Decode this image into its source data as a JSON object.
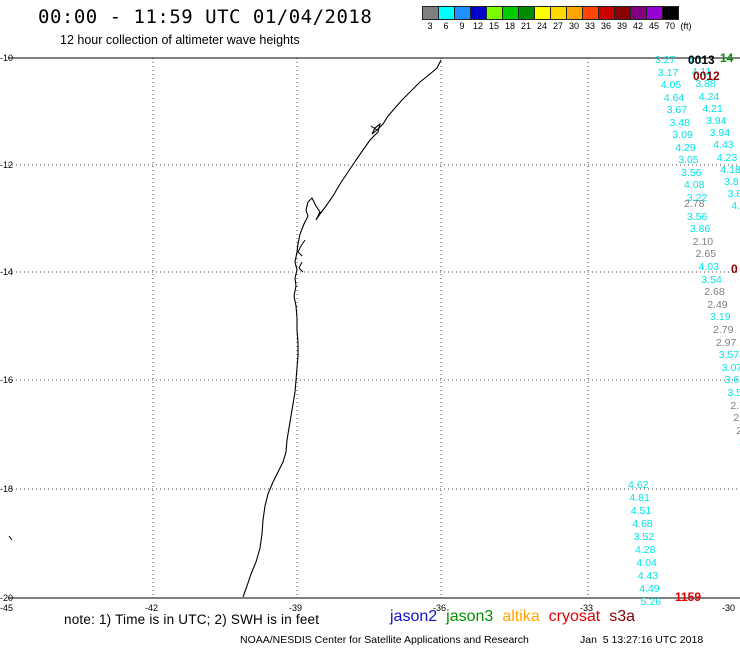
{
  "title": "00:00 - 11:59 UTC 01/04/2018",
  "subtitle": "12 hour collection of altimeter wave heights",
  "color_scale": {
    "labels": [
      "3",
      "6",
      "9",
      "12",
      "15",
      "18",
      "21",
      "24",
      "27",
      "30",
      "33",
      "36",
      "39",
      "42",
      "45",
      "70",
      "(ft)"
    ],
    "colors": [
      "#7f7f7f",
      "#00ffff",
      "#1e90ff",
      "#0000cd",
      "#7cfc00",
      "#00cd00",
      "#008b00",
      "#ffff00",
      "#ffd700",
      "#ffa500",
      "#ff4500",
      "#cd0000",
      "#8b0000",
      "#800080",
      "#9400d3",
      "#000000"
    ]
  },
  "map": {
    "lat_labels": [
      "-10",
      "-12",
      "-14",
      "-16",
      "-18",
      "-20"
    ],
    "lon_labels": [
      "-45",
      "-42",
      "-39",
      "-36",
      "-33",
      "-30"
    ]
  },
  "track_a": {
    "color": "#00e5e5",
    "values": [
      "3.27",
      "3.17",
      "4.05",
      "4.64",
      "3.67",
      "3.48",
      "3.09",
      "4.29",
      "3.05",
      "3.56",
      "4.08",
      "3.22"
    ]
  },
  "track_b_top": {
    "values": [
      "4.1",
      "4.11",
      "3.88",
      "4.24",
      "4.21",
      "3.94",
      "3.94",
      "4.43",
      "4.23",
      "4.18",
      "3.8",
      "3.8",
      "4."
    ]
  },
  "time_labels": [
    "0013",
    "0012",
    "0",
    "1159"
  ],
  "time_label_green": "14",
  "track_c": {
    "values": [
      {
        "v": "2.78",
        "c": "#808080"
      },
      {
        "v": "3.56",
        "c": "#00e5e5"
      },
      {
        "v": "3.86",
        "c": "#00e5e5"
      },
      {
        "v": "2.10",
        "c": "#808080"
      },
      {
        "v": "2.65",
        "c": "#808080"
      },
      {
        "v": "4.03",
        "c": "#00e5e5"
      },
      {
        "v": "3.54",
        "c": "#00e5e5"
      },
      {
        "v": "2.68",
        "c": "#808080"
      },
      {
        "v": "2.49",
        "c": "#808080"
      },
      {
        "v": "3.19",
        "c": "#00e5e5"
      },
      {
        "v": "2.79",
        "c": "#808080"
      },
      {
        "v": "2.97",
        "c": "#808080"
      },
      {
        "v": "3.57",
        "c": "#00e5e5"
      },
      {
        "v": "3.07",
        "c": "#00e5e5"
      },
      {
        "v": "3.69",
        "c": "#00e5e5"
      },
      {
        "v": "3.5",
        "c": "#00e5e5"
      },
      {
        "v": "2.7",
        "c": "#808080"
      },
      {
        "v": "2.",
        "c": "#808080"
      },
      {
        "v": "2.",
        "c": "#808080"
      },
      {
        "v": "3",
        "c": "#00e5e5"
      }
    ]
  },
  "track_d": {
    "values": [
      "4.62",
      "4.81",
      "4.51",
      "4.68",
      "3.52",
      "4.28",
      "4.04",
      "4.43",
      "4.49",
      "5.26"
    ]
  },
  "note": "note: 1) Time is in UTC; 2) SWH is in feet",
  "satellites": [
    {
      "name": "jason2",
      "color": "#1010c8"
    },
    {
      "name": "jason3",
      "color": "#009000"
    },
    {
      "name": "altika",
      "color": "#ffa500"
    },
    {
      "name": "cryosat",
      "color": "#e00000"
    },
    {
      "name": "s3a",
      "color": "#8b0000"
    }
  ],
  "credit": "NOAA/NESDIS Center for Satellite Applications and Research",
  "timestamp": "Jan  5 13:27:16 UTC 2018"
}
